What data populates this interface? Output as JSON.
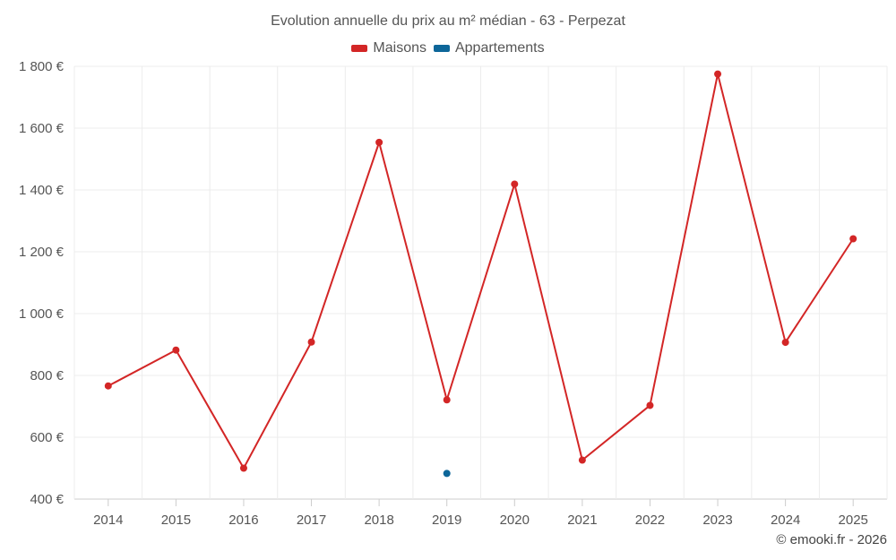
{
  "title": "Evolution annuelle du prix au m² médian - 63 - Perpezat",
  "credit": "© emooki.fr - 2026",
  "colors": {
    "maisons": "#d32626",
    "appartements": "#0d6699",
    "grid": "#ececec",
    "axis": "#cccccc"
  },
  "chart_data": {
    "type": "line",
    "title": "Evolution annuelle du prix au m² médian - 63 - Perpezat",
    "xlabel": "",
    "ylabel": "",
    "categories": [
      "2014",
      "2015",
      "2016",
      "2017",
      "2018",
      "2019",
      "2020",
      "2021",
      "2022",
      "2023",
      "2024",
      "2025"
    ],
    "ylim": [
      400,
      1800
    ],
    "yticks": [
      400,
      600,
      800,
      1000,
      1200,
      1400,
      1600,
      1800
    ],
    "ytick_labels": [
      "400 €",
      "600 €",
      "800 €",
      "1 000 €",
      "1 200 €",
      "1 400 €",
      "1 600 €",
      "1 800 €"
    ],
    "grid": true,
    "legend_position": "top-center",
    "series": [
      {
        "name": "Maisons",
        "color": "#d32626",
        "values": [
          766,
          882,
          500,
          908,
          1554,
          721,
          1419,
          526,
          703,
          1775,
          907,
          1242
        ]
      },
      {
        "name": "Appartements",
        "color": "#0d6699",
        "values": [
          null,
          null,
          null,
          null,
          null,
          483,
          null,
          null,
          null,
          null,
          null,
          null
        ]
      }
    ]
  }
}
